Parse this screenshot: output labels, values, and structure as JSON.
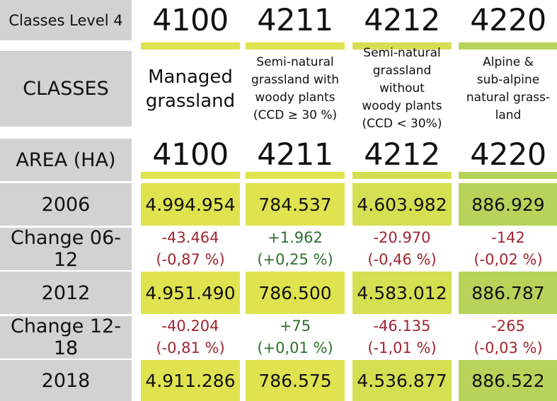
{
  "colors": {
    "grey": "#d2d2d2",
    "yellow_light": "#dfe34f",
    "yellow_mid": "#d5df52",
    "green_light": "#b8d35a",
    "negative": "#a0262f",
    "positive": "#2e6e2e"
  },
  "row_labels": {
    "level4": "Classes Level 4",
    "classes": "CLASSES",
    "area": "AREA (HA)",
    "y2006": "2006",
    "change_06_12": "Change 06-12",
    "y2012": "2012",
    "change_12_18": "Change 12-18",
    "y2018": "2018"
  },
  "columns": [
    {
      "code": "4100",
      "class_lines": [
        "Managed",
        "grassland"
      ],
      "v2006": "4.994.954",
      "c0612_abs": "-43.464",
      "c0612_pct": "(-0,87 %)",
      "c0612_sign": "neg",
      "v2012": "4.951.490",
      "c1218_abs": "-40.204",
      "c1218_pct": "(-0,81 %)",
      "c1218_sign": "neg",
      "v2018": "4.911.286"
    },
    {
      "code": "4211",
      "class_lines": [
        "Semi-natural",
        "grassland with",
        "woody plants",
        "(CCD ≥ 30 %)"
      ],
      "v2006": "784.537",
      "c0612_abs": "+1.962",
      "c0612_pct": "(+0,25 %)",
      "c0612_sign": "pos",
      "v2012": "786.500",
      "c1218_abs": "+75",
      "c1218_pct": "(+0,01 %)",
      "c1218_sign": "pos",
      "v2018": "786.575"
    },
    {
      "code": "4212",
      "class_lines": [
        "Semi-natural",
        "grassland without",
        "woody plants",
        "(CCD < 30%)"
      ],
      "v2006": "4.603.982",
      "c0612_abs": "-20.970",
      "c0612_pct": "(-0,46 %)",
      "c0612_sign": "neg",
      "v2012": "4.583.012",
      "c1218_abs": "-46.135",
      "c1218_pct": "(-1,01 %)",
      "c1218_sign": "neg",
      "v2018": "4.536.877"
    },
    {
      "code": "4220",
      "class_lines": [
        "Alpine &",
        "sub-alpine",
        "natural grass-",
        "land"
      ],
      "v2006": "886.929",
      "c0612_abs": "-142",
      "c0612_pct": "(-0,02 %)",
      "c0612_sign": "neg",
      "v2012": "886.787",
      "c1218_abs": "-265",
      "c1218_pct": "(-0,03 %)",
      "c1218_sign": "neg",
      "v2018": "886.522"
    }
  ]
}
